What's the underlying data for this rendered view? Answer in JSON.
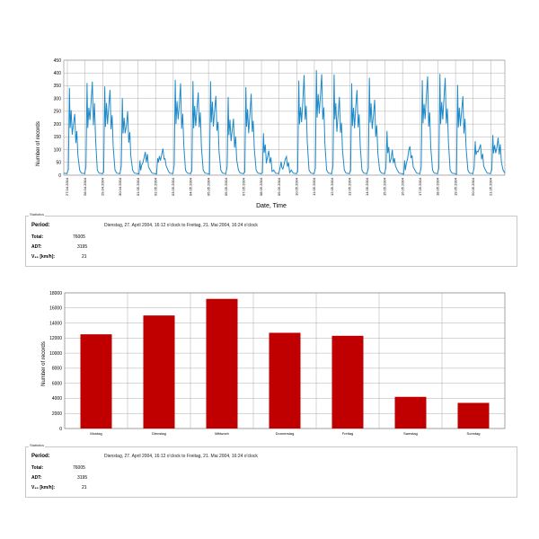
{
  "chart_data": [
    {
      "type": "line",
      "title": "",
      "xlabel": "Date, Time",
      "ylabel": "Number of records",
      "ylim": [
        0,
        450
      ],
      "yticks": [
        0,
        50,
        100,
        150,
        200,
        250,
        300,
        350,
        400,
        450
      ],
      "grid": true,
      "x_tick_labels": [
        "27.04.2004",
        "28.04.2004",
        "29.04.2004",
        "30.04.2004",
        "01.05.2004",
        "02.05.2004",
        "03.05.2004",
        "04.05.2004",
        "05.05.2004",
        "06.05.2004",
        "07.05.2004",
        "08.05.2004",
        "09.05.2004",
        "10.05.2004",
        "11.05.2004",
        "12.05.2004",
        "13.05.2004",
        "14.05.2004",
        "15.05.2004",
        "16.05.2004",
        "17.05.2004",
        "18.05.2004",
        "19.05.2004",
        "20.05.2004",
        "21.05.2004"
      ],
      "daily_peaks": [
        {
          "date": "27.04.2004",
          "am": 340,
          "pm": 260
        },
        {
          "date": "28.04.2004",
          "am": 380,
          "pm": 390
        },
        {
          "date": "29.04.2004",
          "am": 370,
          "pm": 340
        },
        {
          "date": "30.04.2004",
          "am": 310,
          "pm": 270
        },
        {
          "date": "01.05.2004",
          "am": 80,
          "pm": 110
        },
        {
          "date": "02.05.2004",
          "am": 90,
          "pm": 100
        },
        {
          "date": "03.05.2004",
          "am": 380,
          "pm": 370
        },
        {
          "date": "04.05.2004",
          "am": 380,
          "pm": 340
        },
        {
          "date": "05.05.2004",
          "am": 385,
          "pm": 310
        },
        {
          "date": "06.05.2004",
          "am": 300,
          "pm": 240
        },
        {
          "date": "07.05.2004",
          "am": 365,
          "pm": 310
        },
        {
          "date": "08.05.2004",
          "am": 160,
          "pm": 90
        },
        {
          "date": "09.05.2004",
          "am": 60,
          "pm": 90
        },
        {
          "date": "10.05.2004",
          "am": 380,
          "pm": 390
        },
        {
          "date": "11.05.2004",
          "am": 415,
          "pm": 400
        },
        {
          "date": "12.05.2004",
          "am": 395,
          "pm": 320
        },
        {
          "date": "13.05.2004",
          "am": 380,
          "pm": 330
        },
        {
          "date": "14.05.2004",
          "am": 375,
          "pm": 300
        },
        {
          "date": "15.05.2004",
          "am": 180,
          "pm": 110
        },
        {
          "date": "16.05.2004",
          "am": 80,
          "pm": 110
        },
        {
          "date": "17.05.2004",
          "am": 370,
          "pm": 380
        },
        {
          "date": "18.05.2004",
          "am": 410,
          "pm": 390
        },
        {
          "date": "19.05.2004",
          "am": 365,
          "pm": 310
        },
        {
          "date": "20.05.2004",
          "am": 130,
          "pm": 140
        },
        {
          "date": "21.05.2004",
          "am": 175,
          "pm": 165
        }
      ]
    },
    {
      "type": "bar",
      "title": "",
      "xlabel": "",
      "ylabel": "Number of records",
      "ylim": [
        0,
        18000
      ],
      "yticks": [
        0,
        2000,
        4000,
        6000,
        8000,
        10000,
        12000,
        14000,
        16000,
        18000
      ],
      "grid": true,
      "categories": [
        "Montag",
        "Dienstag",
        "Mittwoch",
        "Donnerstag",
        "Freitag",
        "Samstag",
        "Sonntag"
      ],
      "values": [
        12500,
        15000,
        17200,
        12700,
        12300,
        4200,
        3400
      ],
      "color": "#c00000"
    }
  ],
  "stats1": {
    "legend": "Statistics",
    "period_label": "Period:",
    "period_value": "Dienstag, 27. April 2004, 16:12 o'clock to Freitag, 21. Mai 2004, 16:24 o'clock",
    "total_label": "Total:",
    "total_value": "76005",
    "adt_label": "ADT:",
    "adt_value": "3195",
    "v85_label": "V₈₅ [km/h]:",
    "v85_value": "21"
  },
  "stats2": {
    "legend": "Statistics",
    "period_label": "Period:",
    "period_value": "Dienstag, 27. April 2004, 16:12 o'clock to Freitag, 21. Mai 2004, 16:24 o'clock",
    "total_label": "Total:",
    "total_value": "76005",
    "adt_label": "ADT:",
    "adt_value": "3195",
    "v85_label": "V₈₅ [km/h]:",
    "v85_value": "21"
  },
  "colors": {
    "line": "#1f8ac9",
    "bar": "#c00000",
    "grid": "#999999"
  }
}
